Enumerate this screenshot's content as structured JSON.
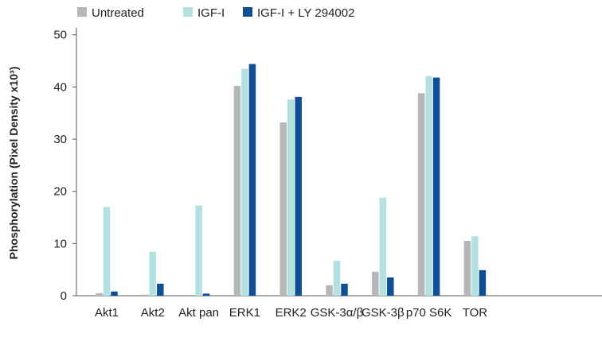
{
  "chart_data": {
    "type": "bar",
    "ylabel": "Phosphorylation (Pixel Density x10³)",
    "xlabel": "",
    "ylim": [
      0,
      55
    ],
    "yticks": [
      0,
      10,
      20,
      30,
      40,
      50
    ],
    "grid": false,
    "legend_position": "top-left",
    "categories": [
      "Akt1",
      "Akt2",
      "Akt pan",
      "ERK1",
      "ERK2",
      "GSK-3α/β",
      "GSK-3β",
      "p70 S6K",
      "TOR"
    ],
    "series": [
      {
        "name": "Untreated",
        "color": "#b7b7b7",
        "values": [
          0.5,
          0.2,
          0,
          40.2,
          33.2,
          2.0,
          4.6,
          38.8,
          10.5
        ]
      },
      {
        "name": "IGF-I",
        "color": "#b3e1e1",
        "values": [
          17.0,
          8.4,
          17.3,
          43.5,
          37.6,
          6.7,
          18.8,
          42.1,
          11.4
        ]
      },
      {
        "name": "IGF-I + LY 294002",
        "color": "#0e4f96",
        "values": [
          0.8,
          2.3,
          0.4,
          44.4,
          38.1,
          2.3,
          3.5,
          41.8,
          4.9
        ]
      }
    ]
  }
}
